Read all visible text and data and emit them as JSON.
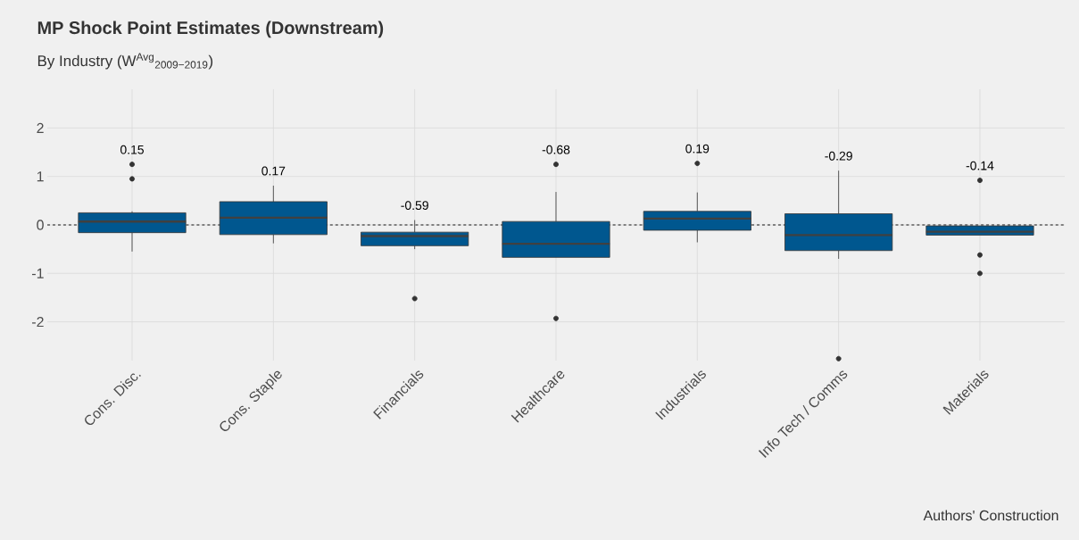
{
  "chart_data": {
    "type": "box",
    "title": "MP Shock Point Estimates (Downstream)",
    "subtitle": "By Industry (W$^{Avg}$$_{2009−2019}$)",
    "categories": [
      "Cons. Disc.",
      "Cons. Staple",
      "Financials",
      "Healthcare",
      "Industrials",
      "Info Tech / Comms",
      "Materials"
    ],
    "color": "#00578f",
    "boxes": [
      {
        "low": -0.55,
        "q1": -0.16,
        "median": 0.07,
        "q3": 0.25,
        "high": 0.28,
        "outliers": [
          1.25,
          0.95
        ]
      },
      {
        "low": -0.38,
        "q1": -0.2,
        "median": 0.15,
        "q3": 0.48,
        "high": 0.81
      },
      {
        "low": -0.5,
        "q1": -0.43,
        "median": -0.23,
        "q3": -0.15,
        "high": 0.1,
        "outliers": [
          -1.52
        ]
      },
      {
        "low": -0.67,
        "q1": -0.67,
        "median": -0.39,
        "q3": 0.07,
        "high": 0.68,
        "outliers": [
          1.25,
          -1.93
        ]
      },
      {
        "low": -0.36,
        "q1": -0.11,
        "median": 0.13,
        "q3": 0.28,
        "high": 0.67,
        "outliers": [
          1.27
        ]
      },
      {
        "low": -0.7,
        "q1": -0.53,
        "median": -0.21,
        "q3": 0.23,
        "high": 1.12,
        "outliers": [
          -2.76
        ]
      },
      {
        "low": -0.21,
        "q1": -0.21,
        "median": -0.14,
        "q3": -0.02,
        "high": -0.02,
        "outliers": [
          0.92,
          -0.62,
          -1.0
        ]
      }
    ],
    "ylim": [
      -2.8,
      2.8
    ],
    "yticks": [
      -2,
      -1,
      0,
      1,
      2
    ],
    "grid": true,
    "ref_lines": [
      {
        "axis": "y",
        "value": 0,
        "line_style": "dashed",
        "color": "#1a1a1a"
      }
    ],
    "annotations": [
      "0.15",
      "0.17",
      "-0.59",
      "-0.68",
      "0.19",
      "-0.29",
      "-0.14",
      "Authors' Construction"
    ]
  }
}
